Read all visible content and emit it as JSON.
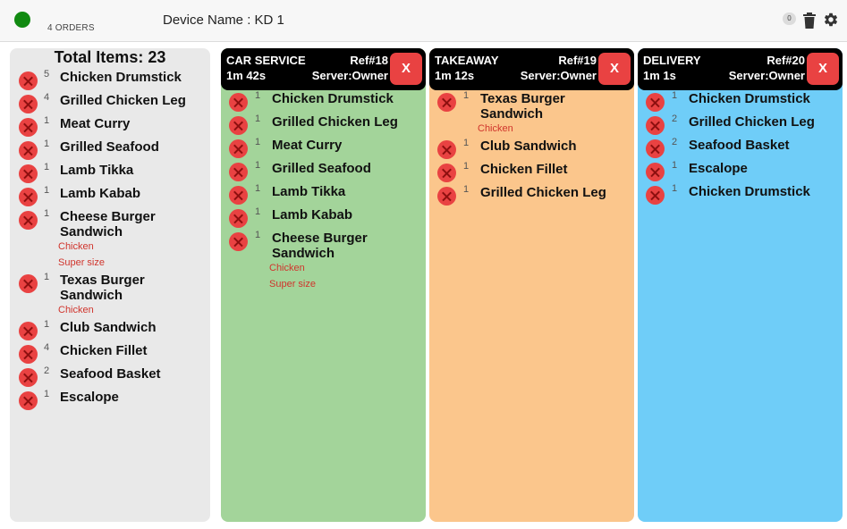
{
  "header": {
    "orders_label": "4 ORDERS",
    "device_label": "Device Name : KD 1",
    "badge_count": "0",
    "status_color": "#118a11"
  },
  "summary": {
    "title": "Total Items: 23",
    "items": [
      {
        "qty": "5",
        "name": "Chicken Drumstick",
        "modifiers": []
      },
      {
        "qty": "4",
        "name": "Grilled Chicken Leg",
        "modifiers": []
      },
      {
        "qty": "1",
        "name": "Meat Curry",
        "modifiers": []
      },
      {
        "qty": "1",
        "name": "Grilled Seafood",
        "modifiers": []
      },
      {
        "qty": "1",
        "name": "Lamb Tikka",
        "modifiers": []
      },
      {
        "qty": "1",
        "name": "Lamb Kabab",
        "modifiers": []
      },
      {
        "qty": "1",
        "name": "Cheese Burger Sandwich",
        "modifiers": [
          "Chicken",
          "Super size"
        ]
      },
      {
        "qty": "1",
        "name": "Texas Burger Sandwich",
        "modifiers": [
          "Chicken"
        ]
      },
      {
        "qty": "1",
        "name": "Club Sandwich",
        "modifiers": []
      },
      {
        "qty": "4",
        "name": "Chicken Fillet",
        "modifiers": []
      },
      {
        "qty": "2",
        "name": "Seafood Basket",
        "modifiers": []
      },
      {
        "qty": "1",
        "name": "Escalope",
        "modifiers": []
      }
    ]
  },
  "orders": [
    {
      "type": "CAR SERVICE",
      "ref": "Ref#18",
      "elapsed": "1m 42s",
      "server": "Server:Owner",
      "close_label": "X",
      "color": "#a3d49a",
      "items": [
        {
          "qty": "1",
          "name": "Chicken Drumstick",
          "modifiers": []
        },
        {
          "qty": "1",
          "name": "Grilled Chicken Leg",
          "modifiers": []
        },
        {
          "qty": "1",
          "name": "Meat Curry",
          "modifiers": []
        },
        {
          "qty": "1",
          "name": "Grilled Seafood",
          "modifiers": []
        },
        {
          "qty": "1",
          "name": "Lamb Tikka",
          "modifiers": []
        },
        {
          "qty": "1",
          "name": "Lamb Kabab",
          "modifiers": []
        },
        {
          "qty": "1",
          "name": "Cheese Burger Sandwich",
          "modifiers": [
            "Chicken",
            "Super size"
          ]
        }
      ]
    },
    {
      "type": "TAKEAWAY",
      "ref": "Ref#19",
      "elapsed": "1m 12s",
      "server": "Server:Owner",
      "close_label": "X",
      "color": "#fbc68c",
      "items": [
        {
          "qty": "1",
          "name": "Texas Burger Sandwich",
          "modifiers": [
            "Chicken"
          ]
        },
        {
          "qty": "1",
          "name": "Club Sandwich",
          "modifiers": []
        },
        {
          "qty": "1",
          "name": "Chicken Fillet",
          "modifiers": []
        },
        {
          "qty": "1",
          "name": "Grilled Chicken Leg",
          "modifiers": []
        }
      ]
    },
    {
      "type": "DELIVERY",
      "ref": "Ref#20",
      "elapsed": "1m 1s",
      "server": "Server:Owner",
      "close_label": "X",
      "color": "#6fcdf8",
      "items": [
        {
          "qty": "1",
          "name": "Chicken Drumstick",
          "modifiers": []
        },
        {
          "qty": "2",
          "name": "Grilled Chicken Leg",
          "modifiers": []
        },
        {
          "qty": "2",
          "name": "Seafood Basket",
          "modifiers": []
        },
        {
          "qty": "1",
          "name": "Escalope",
          "modifiers": []
        },
        {
          "qty": "1",
          "name": "Chicken Drumstick",
          "modifiers": []
        }
      ]
    }
  ],
  "icons": {
    "trash": "trash-icon",
    "settings": "gear-icon",
    "remove": "remove-circle-icon"
  }
}
